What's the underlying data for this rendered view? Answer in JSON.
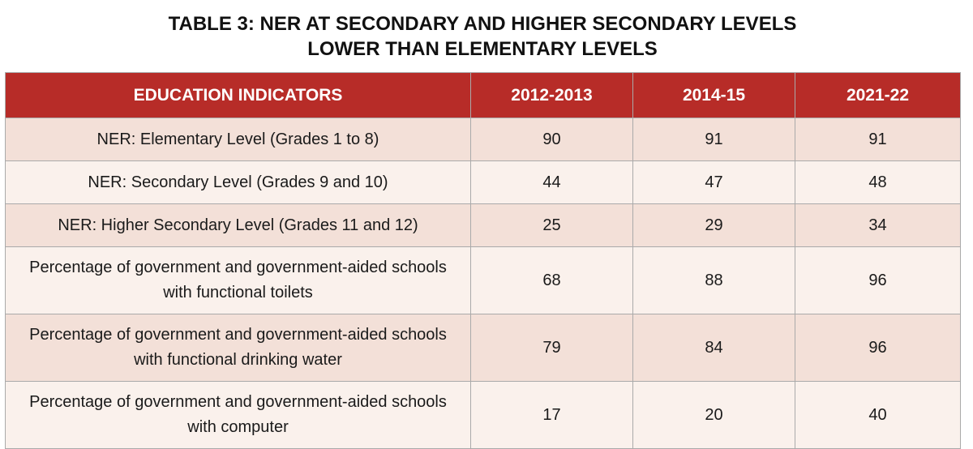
{
  "title": [
    "TABLE 3: NER AT SECONDARY AND HIGHER SECONDARY LEVELS",
    "LOWER THAN ELEMENTARY LEVELS"
  ],
  "headers": [
    "EDUCATION INDICATORS",
    "2012-2013",
    "2014-15",
    "2021-22"
  ],
  "rows": [
    [
      "NER: Elementary Level (Grades 1 to 8)",
      "90",
      "91",
      "91"
    ],
    [
      "NER: Secondary Level (Grades 9 and 10)",
      "44",
      "47",
      "48"
    ],
    [
      "NER: Higher Secondary Level (Grades 11 and 12)",
      "25",
      "29",
      "34"
    ],
    [
      "Percentage of government and government-aided schools with functional toilets",
      "68",
      "88",
      "96"
    ],
    [
      "Percentage of government and government-aided schools with functional drinking water",
      "79",
      "84",
      "96"
    ],
    [
      "Percentage of government and government-aided schools with computer",
      "17",
      "20",
      "40"
    ]
  ]
}
